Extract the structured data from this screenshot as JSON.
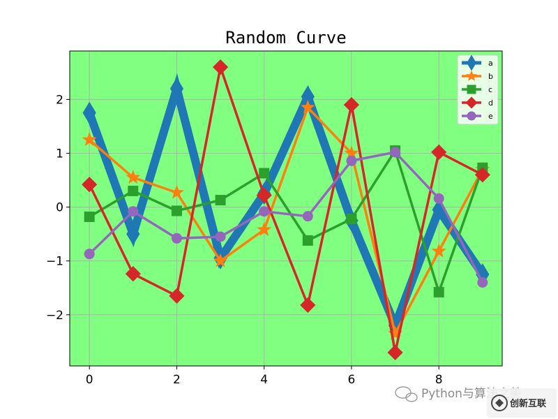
{
  "chart_data": {
    "type": "line",
    "title": "Random Curve",
    "xlabel": "",
    "ylabel": "",
    "x": [
      0,
      1,
      2,
      3,
      4,
      5,
      6,
      7,
      8,
      9
    ],
    "xlim": [
      -0.45,
      9.45
    ],
    "ylim": [
      -2.95,
      2.9
    ],
    "x_ticks": [
      0,
      2,
      4,
      6,
      8
    ],
    "y_ticks": [
      -2,
      -1,
      0,
      1,
      2
    ],
    "x_tick_labels": [
      "0",
      "2",
      "4",
      "6",
      "8"
    ],
    "y_tick_labels": [
      "−2",
      "−1",
      "0",
      "1",
      "2"
    ],
    "grid": true,
    "plot_background": "#80ff80",
    "legend_position": "top-right",
    "series": [
      {
        "name": "a",
        "color": "#1f77b4",
        "marker": "thin-diamond",
        "values": [
          1.75,
          -0.5,
          2.2,
          -0.95,
          0.25,
          2.05,
          -0.25,
          -2.2,
          -0.05,
          -1.25
        ]
      },
      {
        "name": "b",
        "color": "#ff7f0e",
        "marker": "star",
        "values": [
          1.25,
          0.55,
          0.27,
          -1.0,
          -0.42,
          1.85,
          1.0,
          -2.35,
          -0.82,
          0.7
        ]
      },
      {
        "name": "c",
        "color": "#2ca02c",
        "marker": "square",
        "values": [
          -0.18,
          0.3,
          -0.07,
          0.13,
          0.63,
          -0.62,
          -0.22,
          1.05,
          -1.58,
          0.73
        ]
      },
      {
        "name": "d",
        "color": "#d62728",
        "marker": "diamond",
        "values": [
          0.42,
          -1.24,
          -1.65,
          2.6,
          0.22,
          -1.82,
          1.9,
          -2.7,
          1.02,
          0.6
        ]
      },
      {
        "name": "e",
        "color": "#9467bd",
        "marker": "circle",
        "values": [
          -0.87,
          -0.08,
          -0.58,
          -0.55,
          -0.08,
          -0.17,
          0.86,
          1.02,
          0.16,
          -1.4
        ]
      }
    ]
  },
  "watermark": {
    "text": "Python与算法之美",
    "logo_text": "创新互联"
  }
}
